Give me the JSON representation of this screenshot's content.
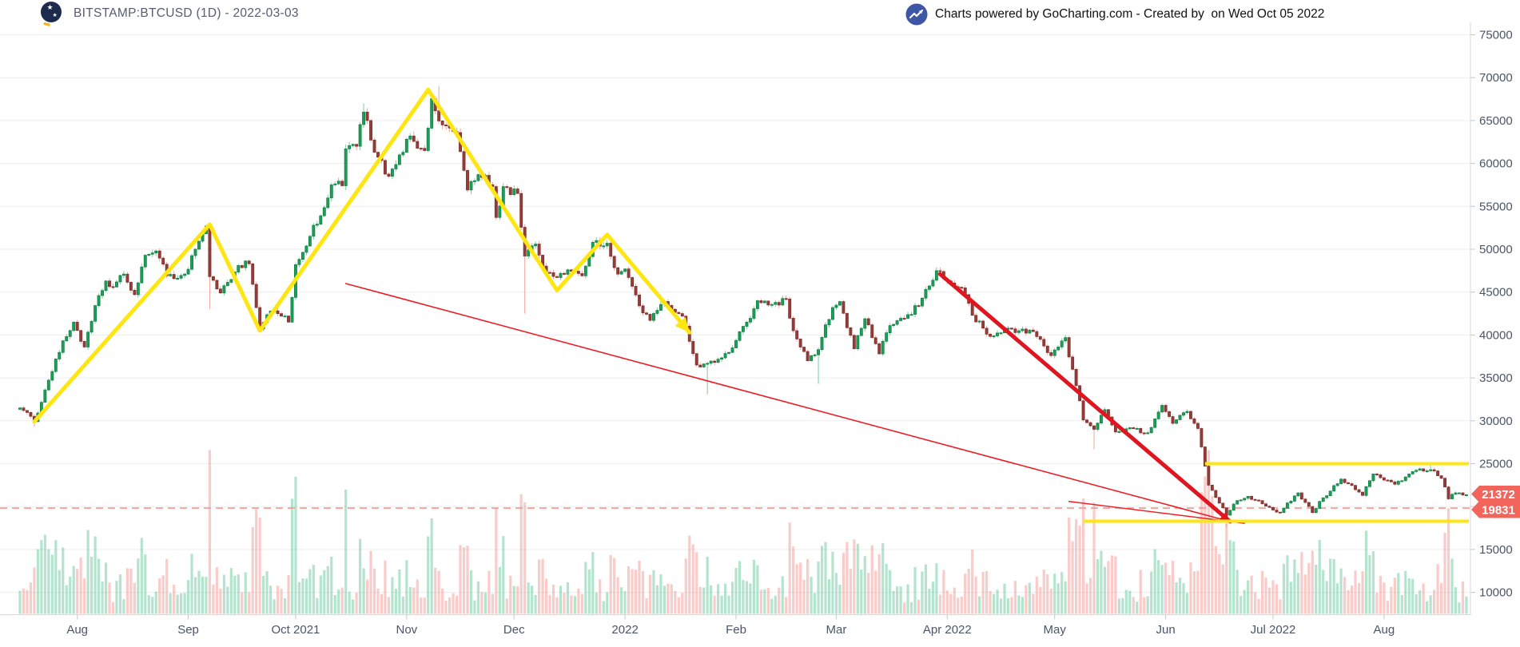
{
  "header": {
    "symbol_title": "BITSTAMP:BTCUSD (1D) - 2022-03-03",
    "watermark_text": "Charts powered by GoCharting.com - Created by  on Wed Oct 05 2022"
  },
  "price_scale": {
    "last_price_badge": "21372",
    "line_price_badge": "19831",
    "badge_color": "#f1655d",
    "label_color": "#4a5568"
  },
  "time_scale": {
    "labels": [
      {
        "text": "Aug",
        "date": "2021-08-01"
      },
      {
        "text": "Sep",
        "date": "2021-09-01"
      },
      {
        "text": "Oct 2021",
        "date": "2021-10-01"
      },
      {
        "text": "Nov",
        "date": "2021-11-01"
      },
      {
        "text": "Dec",
        "date": "2021-12-01"
      },
      {
        "text": "2022",
        "date": "2022-01-01"
      },
      {
        "text": "Feb",
        "date": "2022-02-01"
      },
      {
        "text": "Mar",
        "date": "2022-03-01"
      },
      {
        "text": "Apr 2022",
        "date": "2022-04-01"
      },
      {
        "text": "May",
        "date": "2022-05-01"
      },
      {
        "text": "Jun",
        "date": "2022-06-01"
      },
      {
        "text": "Jul 2022",
        "date": "2022-07-01"
      },
      {
        "text": "Aug",
        "date": "2022-08-01"
      }
    ]
  },
  "chart_data": {
    "type": "candlestick+volume",
    "symbol": "BITSTAMP:BTCUSD",
    "timeframe": "1D",
    "title": "BITSTAMP:BTCUSD (1D) - 2022-03-03",
    "y_axis": {
      "min": 10000,
      "max": 75000,
      "tick_step": 5000,
      "ticks": [
        75000,
        70000,
        65000,
        60000,
        55000,
        50000,
        45000,
        40000,
        35000,
        30000,
        25000,
        20000,
        15000,
        10000
      ]
    },
    "grid": "horizontal-only",
    "last_close": 21372,
    "close_path": [
      {
        "d": "2021-07-16",
        "c": 31500
      },
      {
        "d": "2021-07-20",
        "c": 29900
      },
      {
        "d": "2021-07-23",
        "c": 33600
      },
      {
        "d": "2021-07-26",
        "c": 37200
      },
      {
        "d": "2021-07-31",
        "c": 41500
      },
      {
        "d": "2021-08-03",
        "c": 38600
      },
      {
        "d": "2021-08-07",
        "c": 44600
      },
      {
        "d": "2021-08-09",
        "c": 46300
      },
      {
        "d": "2021-08-11",
        "c": 45600
      },
      {
        "d": "2021-08-14",
        "c": 47100
      },
      {
        "d": "2021-08-17",
        "c": 44700
      },
      {
        "d": "2021-08-20",
        "c": 49300
      },
      {
        "d": "2021-08-23",
        "c": 49800
      },
      {
        "d": "2021-08-26",
        "c": 46900
      },
      {
        "d": "2021-08-31",
        "c": 47100
      },
      {
        "d": "2021-09-03",
        "c": 50000
      },
      {
        "d": "2021-09-06",
        "c": 52700
      },
      {
        "d": "2021-09-07",
        "c": 46800
      },
      {
        "d": "2021-09-10",
        "c": 44900
      },
      {
        "d": "2021-09-15",
        "c": 48100
      },
      {
        "d": "2021-09-18",
        "c": 48300
      },
      {
        "d": "2021-09-21",
        "c": 40700
      },
      {
        "d": "2021-09-24",
        "c": 42800
      },
      {
        "d": "2021-09-27",
        "c": 42200
      },
      {
        "d": "2021-09-29",
        "c": 41500
      },
      {
        "d": "2021-10-01",
        "c": 48200
      },
      {
        "d": "2021-10-05",
        "c": 51500
      },
      {
        "d": "2021-10-08",
        "c": 53900
      },
      {
        "d": "2021-10-11",
        "c": 57500
      },
      {
        "d": "2021-10-14",
        "c": 57400
      },
      {
        "d": "2021-10-15",
        "c": 61700
      },
      {
        "d": "2021-10-18",
        "c": 62000
      },
      {
        "d": "2021-10-20",
        "c": 65990
      },
      {
        "d": "2021-10-23",
        "c": 61300
      },
      {
        "d": "2021-10-27",
        "c": 58500
      },
      {
        "d": "2021-10-31",
        "c": 61300
      },
      {
        "d": "2021-11-02",
        "c": 63200
      },
      {
        "d": "2021-11-06",
        "c": 61500
      },
      {
        "d": "2021-11-08",
        "c": 67550
      },
      {
        "d": "2021-11-10",
        "c": 64950
      },
      {
        "d": "2021-11-12",
        "c": 64400
      },
      {
        "d": "2021-11-15",
        "c": 63600
      },
      {
        "d": "2021-11-18",
        "c": 56900
      },
      {
        "d": "2021-11-21",
        "c": 58700
      },
      {
        "d": "2021-11-25",
        "c": 57300
      },
      {
        "d": "2021-11-26",
        "c": 53700
      },
      {
        "d": "2021-11-28",
        "c": 57300
      },
      {
        "d": "2021-12-02",
        "c": 56500
      },
      {
        "d": "2021-12-04",
        "c": 49200
      },
      {
        "d": "2021-12-07",
        "c": 50600
      },
      {
        "d": "2021-12-10",
        "c": 47300
      },
      {
        "d": "2021-12-13",
        "c": 46700
      },
      {
        "d": "2021-12-16",
        "c": 47600
      },
      {
        "d": "2021-12-20",
        "c": 46900
      },
      {
        "d": "2021-12-23",
        "c": 50800
      },
      {
        "d": "2021-12-27",
        "c": 50700
      },
      {
        "d": "2021-12-30",
        "c": 47100
      },
      {
        "d": "2022-01-01",
        "c": 47700
      },
      {
        "d": "2022-01-05",
        "c": 43400
      },
      {
        "d": "2022-01-08",
        "c": 41700
      },
      {
        "d": "2022-01-12",
        "c": 43900
      },
      {
        "d": "2022-01-17",
        "c": 42200
      },
      {
        "d": "2022-01-21",
        "c": 36500
      },
      {
        "d": "2022-01-24",
        "c": 36700
      },
      {
        "d": "2022-01-26",
        "c": 36800
      },
      {
        "d": "2022-01-31",
        "c": 38500
      },
      {
        "d": "2022-02-04",
        "c": 41500
      },
      {
        "d": "2022-02-07",
        "c": 44000
      },
      {
        "d": "2022-02-10",
        "c": 43500
      },
      {
        "d": "2022-02-15",
        "c": 44200
      },
      {
        "d": "2022-02-17",
        "c": 40500
      },
      {
        "d": "2022-02-21",
        "c": 37000
      },
      {
        "d": "2022-02-24",
        "c": 38300
      },
      {
        "d": "2022-02-28",
        "c": 43200
      },
      {
        "d": "2022-03-02",
        "c": 43900
      },
      {
        "d": "2022-03-06",
        "c": 38400
      },
      {
        "d": "2022-03-09",
        "c": 41900
      },
      {
        "d": "2022-03-13",
        "c": 37800
      },
      {
        "d": "2022-03-16",
        "c": 41100
      },
      {
        "d": "2022-03-22",
        "c": 42400
      },
      {
        "d": "2022-03-25",
        "c": 44300
      },
      {
        "d": "2022-03-29",
        "c": 47500
      },
      {
        "d": "2022-04-01",
        "c": 46300
      },
      {
        "d": "2022-04-05",
        "c": 45500
      },
      {
        "d": "2022-04-08",
        "c": 42300
      },
      {
        "d": "2022-04-12",
        "c": 40100
      },
      {
        "d": "2022-04-14",
        "c": 39900
      },
      {
        "d": "2022-04-18",
        "c": 40800
      },
      {
        "d": "2022-04-21",
        "c": 40500
      },
      {
        "d": "2022-04-25",
        "c": 40400
      },
      {
        "d": "2022-04-30",
        "c": 37600
      },
      {
        "d": "2022-05-04",
        "c": 39700
      },
      {
        "d": "2022-05-06",
        "c": 36000
      },
      {
        "d": "2022-05-09",
        "c": 30100
      },
      {
        "d": "2022-05-12",
        "c": 29000
      },
      {
        "d": "2022-05-15",
        "c": 31300
      },
      {
        "d": "2022-05-18",
        "c": 28700
      },
      {
        "d": "2022-05-23",
        "c": 29100
      },
      {
        "d": "2022-05-27",
        "c": 28600
      },
      {
        "d": "2022-05-31",
        "c": 31800
      },
      {
        "d": "2022-06-03",
        "c": 29700
      },
      {
        "d": "2022-06-07",
        "c": 31100
      },
      {
        "d": "2022-06-10",
        "c": 29100
      },
      {
        "d": "2022-06-13",
        "c": 22500
      },
      {
        "d": "2022-06-16",
        "c": 20400
      },
      {
        "d": "2022-06-18",
        "c": 19000
      },
      {
        "d": "2022-06-21",
        "c": 20700
      },
      {
        "d": "2022-06-24",
        "c": 21200
      },
      {
        "d": "2022-06-27",
        "c": 20700
      },
      {
        "d": "2022-06-30",
        "c": 19900
      },
      {
        "d": "2022-07-03",
        "c": 19300
      },
      {
        "d": "2022-07-08",
        "c": 21600
      },
      {
        "d": "2022-07-12",
        "c": 19300
      },
      {
        "d": "2022-07-14",
        "c": 20600
      },
      {
        "d": "2022-07-20",
        "c": 23200
      },
      {
        "d": "2022-07-26",
        "c": 21300
      },
      {
        "d": "2022-07-29",
        "c": 23800
      },
      {
        "d": "2022-08-04",
        "c": 22600
      },
      {
        "d": "2022-08-08",
        "c": 23800
      },
      {
        "d": "2022-08-11",
        "c": 24400
      },
      {
        "d": "2022-08-14",
        "c": 24300
      },
      {
        "d": "2022-08-17",
        "c": 23300
      },
      {
        "d": "2022-08-19",
        "c": 20900
      },
      {
        "d": "2022-08-21",
        "c": 21600
      },
      {
        "d": "2022-08-24",
        "c": 21372
      }
    ],
    "forced_wicks": [
      {
        "d": "2021-07-20",
        "low": 29300
      },
      {
        "d": "2021-09-07",
        "low": 43000
      },
      {
        "d": "2021-10-20",
        "high": 67000
      },
      {
        "d": "2021-11-10",
        "high": 69000
      },
      {
        "d": "2021-12-04",
        "low": 42500
      },
      {
        "d": "2022-01-24",
        "low": 33100
      },
      {
        "d": "2022-02-24",
        "low": 34300
      },
      {
        "d": "2022-05-12",
        "low": 26700
      },
      {
        "d": "2022-06-18",
        "low": 17600
      },
      {
        "d": "2022-08-14",
        "high": 25150
      }
    ],
    "volume_spikes": [
      {
        "d": "2021-07-26",
        "v": 0.32
      },
      {
        "d": "2021-09-07",
        "v": 0.5
      },
      {
        "d": "2021-09-13",
        "v": 0.28
      },
      {
        "d": "2021-12-04",
        "v": 0.45
      },
      {
        "d": "2022-01-21",
        "v": 0.3
      },
      {
        "d": "2022-01-24",
        "v": 0.35
      },
      {
        "d": "2022-02-24",
        "v": 0.32
      },
      {
        "d": "2022-03-01",
        "v": 0.25
      },
      {
        "d": "2022-05-09",
        "v": 0.52
      },
      {
        "d": "2022-05-12",
        "v": 0.68
      },
      {
        "d": "2022-06-13",
        "v": 1.0
      },
      {
        "d": "2022-06-14",
        "v": 0.72
      },
      {
        "d": "2022-06-18",
        "v": 0.55
      },
      {
        "d": "2022-06-19",
        "v": 0.45
      },
      {
        "d": "2022-07-13",
        "v": 0.3
      },
      {
        "d": "2022-08-19",
        "v": 0.28
      }
    ],
    "annotations": {
      "yellow_zigzag": {
        "color": "#ffe512",
        "width": 5,
        "arrow_end": true,
        "points": [
          {
            "d": "2021-07-20",
            "p": 29900
          },
          {
            "d": "2021-09-07",
            "p": 52900
          },
          {
            "d": "2021-09-21",
            "p": 40500
          },
          {
            "d": "2021-11-07",
            "p": 68600
          },
          {
            "d": "2021-12-13",
            "p": 45200
          },
          {
            "d": "2021-12-27",
            "p": 51700
          },
          {
            "d": "2022-01-19",
            "p": 40300
          }
        ]
      },
      "yellow_resistance_line": {
        "price": 25000,
        "from": "2022-06-12",
        "color": "#ffe512",
        "width": 4
      },
      "yellow_support_line": {
        "price": 18300,
        "from": "2022-05-09",
        "color": "#ffe512",
        "width": 4
      },
      "red_trendline_long": {
        "d1": "2021-10-15",
        "p1": 46000,
        "d2": "2022-06-19",
        "p2": 18250,
        "color": "#ee1c24",
        "width": 1.6,
        "arrow_end": false
      },
      "red_trendline_short": {
        "d1": "2022-05-05",
        "p1": 20600,
        "d2": "2022-06-23",
        "p2": 18050,
        "color": "#ee1c24",
        "width": 1.4,
        "arrow_end": false
      },
      "red_trendline_thick": {
        "d1": "2022-03-30",
        "p1": 47100,
        "d2": "2022-06-19",
        "p2": 18250,
        "color": "#e01520",
        "width": 5,
        "arrow_end": true
      },
      "dashed_price_line": {
        "price": 19831,
        "color": "#f4968d",
        "width": 1.6
      }
    },
    "colors": {
      "up_body": "#1d9d58",
      "up_border": "#0f7f44",
      "up_wick": "#7fcaa3",
      "down_body": "#953b38",
      "down_border": "#7c2f2d",
      "down_wick": "#f2a49c",
      "vol_up": "rgba(60,185,125,0.38)",
      "vol_down": "rgba(242,120,114,0.38)",
      "grid": "#ededed",
      "axis_line": "#d7d7d7",
      "tick": "#c3c7cf",
      "text": "#4a5568"
    }
  }
}
